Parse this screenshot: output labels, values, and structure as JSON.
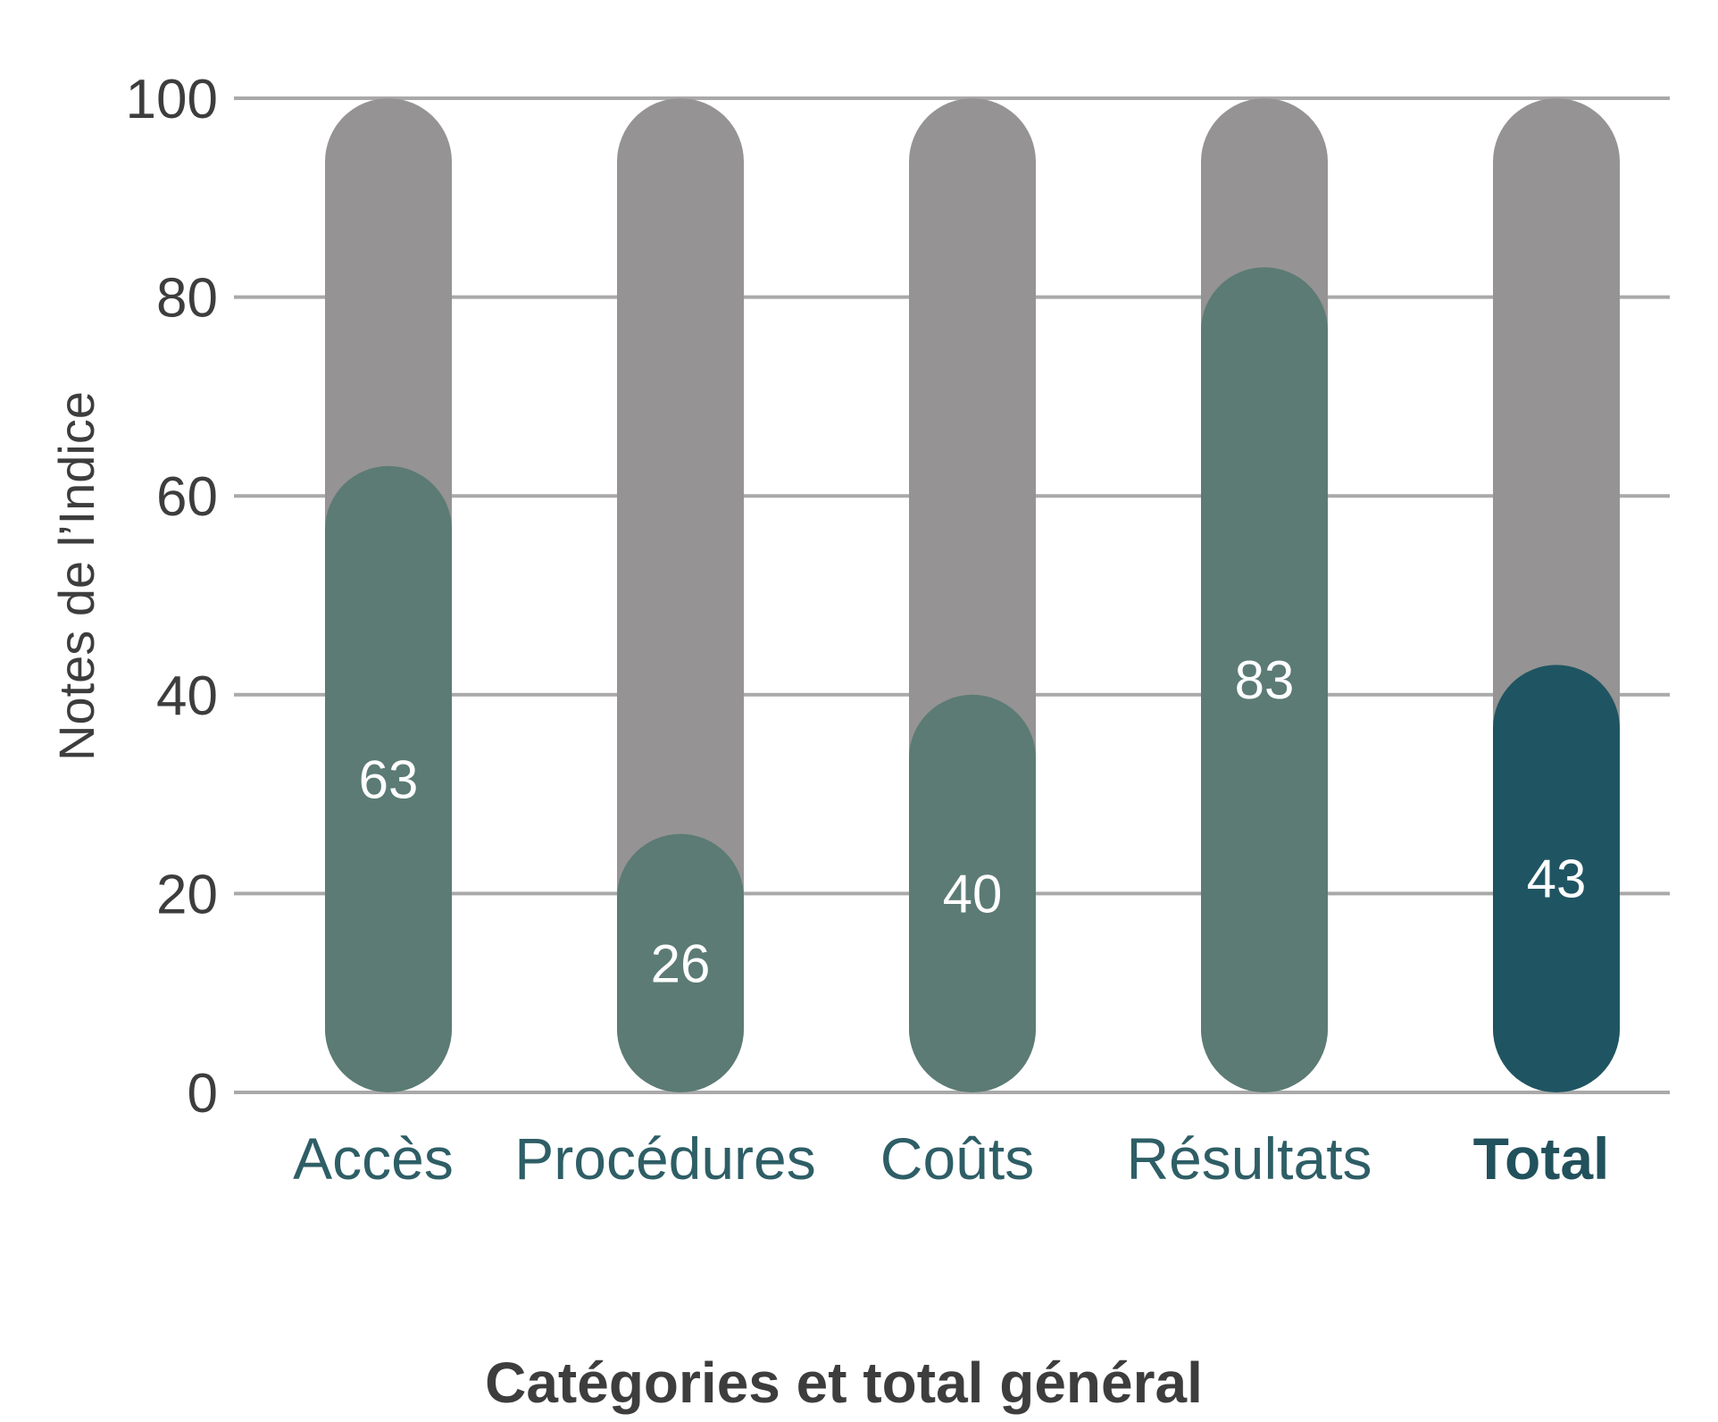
{
  "chart_data": {
    "type": "bar",
    "title": "",
    "xlabel": "Catégories et total général",
    "ylabel": "Notes de l’Indice",
    "categories": [
      "Accès",
      "Procédures",
      "Coûts",
      "Résultats",
      "Total"
    ],
    "values": [
      63,
      26,
      40,
      83,
      43
    ],
    "value_labels": [
      "63",
      "26",
      "40",
      "83",
      "43"
    ],
    "max_value": 100,
    "ylim": [
      0,
      100
    ],
    "yticks": [
      0,
      20,
      40,
      60,
      80,
      100
    ],
    "ytick_labels": [
      "0",
      "20",
      "40",
      "60",
      "80",
      "100"
    ],
    "grid": true,
    "emphasized_category": "Total",
    "colors": {
      "background_bar": "#959394",
      "value_bar": "#5b7b74",
      "total_bar": "#1f5562",
      "grid": "#a9a9a9",
      "category_text": "#2e5e66"
    }
  }
}
